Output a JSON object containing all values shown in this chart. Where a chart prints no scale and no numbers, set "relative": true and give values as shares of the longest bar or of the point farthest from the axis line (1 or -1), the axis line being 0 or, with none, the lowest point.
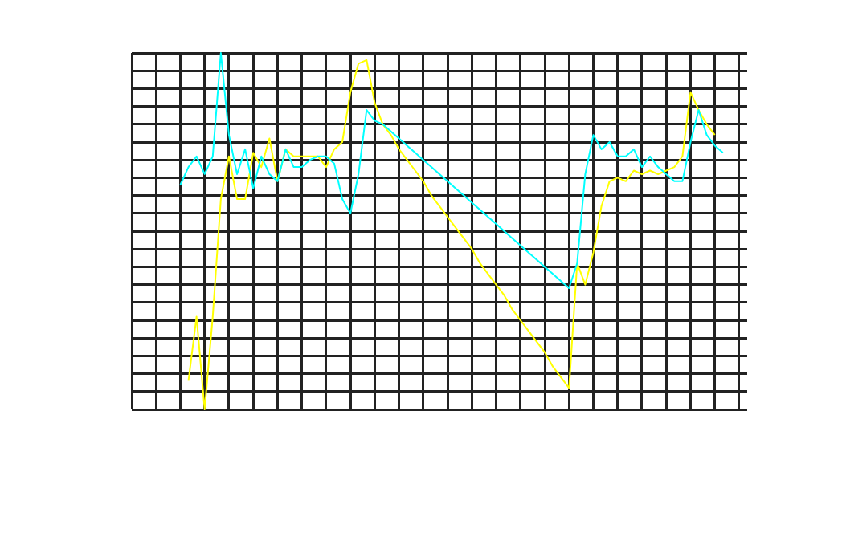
{
  "chart_data": {
    "type": "line",
    "relative": true,
    "grid": true,
    "categories": [
      null,
      null,
      null,
      null,
      null,
      null,
      null,
      null,
      null,
      null,
      null,
      null,
      null,
      null,
      null,
      null,
      null,
      null,
      null,
      null,
      null,
      null,
      null,
      null,
      null,
      null,
      null,
      null,
      null,
      null,
      null,
      null,
      null,
      null,
      null,
      null,
      null,
      null,
      null,
      null,
      null,
      null,
      null,
      null,
      null,
      null,
      null,
      null,
      null,
      null,
      null,
      null,
      null,
      null,
      null,
      null,
      null,
      null,
      null,
      null,
      null,
      null,
      null,
      null,
      null,
      null,
      null,
      null,
      null,
      null,
      null,
      null,
      null,
      null,
      null,
      null,
      null
    ],
    "series": [
      {
        "color": "#00ffff",
        "values": [
          null,
          null,
          null,
          null,
          null,
          null,
          0.63,
          0.68,
          0.71,
          0.66,
          0.71,
          1.0,
          0.77,
          0.66,
          0.73,
          0.62,
          0.71,
          0.66,
          0.64,
          0.73,
          0.68,
          0.68,
          0.7,
          0.71,
          0.71,
          0.69,
          0.59,
          0.55,
          0.66,
          0.84,
          0.81,
          0.8,
          0.78,
          0.76,
          0.74,
          0.72,
          0.7,
          0.68,
          0.66,
          0.64,
          0.62,
          0.6,
          0.58,
          0.56,
          0.54,
          0.52,
          0.5,
          0.48,
          0.46,
          0.44,
          0.42,
          0.4,
          0.38,
          0.36,
          0.34,
          0.41,
          0.66,
          0.77,
          0.73,
          0.75,
          0.71,
          0.71,
          0.73,
          0.68,
          0.71,
          0.68,
          0.66,
          0.64,
          0.64,
          0.75,
          0.84,
          0.77,
          0.74,
          0.72,
          null,
          null,
          null
        ]
      },
      {
        "color": "#ffff00",
        "values": [
          null,
          null,
          null,
          null,
          null,
          null,
          null,
          0.08,
          0.26,
          0.0,
          0.26,
          0.59,
          0.71,
          0.59,
          0.59,
          0.72,
          0.68,
          0.76,
          0.64,
          0.73,
          0.71,
          0.71,
          0.71,
          0.71,
          0.68,
          0.73,
          0.75,
          0.89,
          0.97,
          0.98,
          0.86,
          0.8,
          0.77,
          0.73,
          0.7,
          0.67,
          0.64,
          0.6,
          0.57,
          0.54,
          0.51,
          0.48,
          0.45,
          0.41,
          0.38,
          0.35,
          0.32,
          0.28,
          0.25,
          0.22,
          0.19,
          0.16,
          0.12,
          0.09,
          0.06,
          0.41,
          0.35,
          0.44,
          0.57,
          0.64,
          0.65,
          0.64,
          0.67,
          0.66,
          0.67,
          0.66,
          0.67,
          0.68,
          0.71,
          0.89,
          0.84,
          0.8,
          0.77,
          null,
          null,
          null,
          null
        ]
      }
    ]
  }
}
